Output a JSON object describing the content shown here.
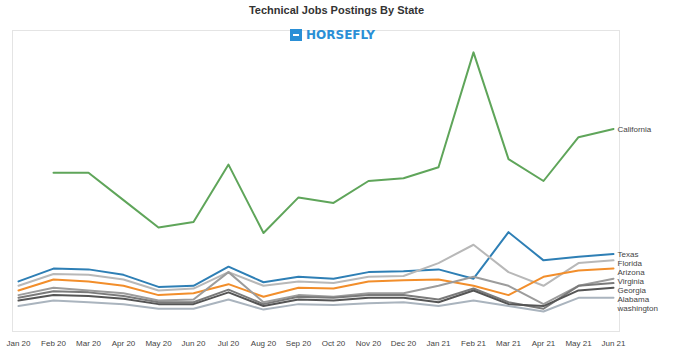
{
  "chart_data": {
    "type": "line",
    "title": "Technical Jobs Postings By State",
    "annotations": [
      "HORSEFLY"
    ],
    "x": [
      "Jan 20",
      "Feb 20",
      "Mar 20",
      "Apr 20",
      "May 20",
      "Jun 20",
      "Jul 20",
      "Aug 20",
      "Sep 20",
      "Oct 20",
      "Nov 20",
      "Dec 20",
      "Jan 21",
      "Feb 21",
      "Mar 21",
      "Apr 21",
      "May 21",
      "Jun 21"
    ],
    "series": [
      {
        "name": "California",
        "color": "#5fa55a",
        "values": [
          null,
          58,
          58,
          48,
          38,
          40,
          61,
          36,
          49,
          47,
          55,
          56,
          60,
          102,
          63,
          55,
          71,
          74
        ]
      },
      {
        "name": "Texas",
        "color": "#2e7fb5",
        "values": [
          18.3,
          23,
          22.7,
          20.7,
          16.3,
          16.7,
          23.7,
          18,
          20,
          19.3,
          21.7,
          22,
          22.7,
          19.3,
          36.3,
          26,
          27.3,
          28.3
        ]
      },
      {
        "name": "Florida",
        "color": "#b8b8b8",
        "values": [
          16.7,
          21,
          20.7,
          19,
          15,
          15.7,
          21.7,
          16.7,
          18.3,
          17.7,
          20,
          20.3,
          25,
          31.7,
          21.7,
          16.7,
          25,
          26
        ]
      },
      {
        "name": "Arizona",
        "color": "#f28e2b",
        "values": [
          15,
          19,
          18.3,
          16.7,
          13.3,
          14,
          17.3,
          12.7,
          16,
          15.7,
          18.3,
          18.7,
          19,
          16.7,
          13.3,
          20,
          22.3,
          23
        ]
      },
      {
        "name": "Virginia",
        "color": "#9c9c9c",
        "values": [
          13.3,
          16,
          15,
          14,
          11.3,
          11.7,
          21.7,
          10.7,
          13.3,
          12.7,
          14,
          14,
          16.7,
          20,
          16.7,
          10,
          16.7,
          19.3
        ]
      },
      {
        "name": "Georgia",
        "color": "#7a7a7a",
        "values": [
          12.3,
          14.7,
          14.3,
          13,
          10.7,
          10.7,
          15.3,
          10,
          12.7,
          12.3,
          13.3,
          13.3,
          11.7,
          15.7,
          10.7,
          8.3,
          16.7,
          17.7
        ]
      },
      {
        "name": "Alabama",
        "color": "#555555",
        "values": [
          11.3,
          13.3,
          13,
          12,
          10,
          10,
          14.3,
          9.3,
          11.7,
          11.3,
          12.3,
          12.3,
          10.7,
          15,
          10,
          9.3,
          15,
          16
        ]
      },
      {
        "name": "washington",
        "color": "#aab4be",
        "values": [
          9.3,
          11.3,
          10.7,
          10,
          8.3,
          8.3,
          11.7,
          8,
          10,
          9.7,
          10.3,
          10.7,
          9.3,
          11.3,
          9.3,
          7.3,
          12.3,
          12.3
        ]
      }
    ],
    "ylim": [
      0,
      110
    ],
    "grid": false,
    "tick_labels": "x"
  }
}
